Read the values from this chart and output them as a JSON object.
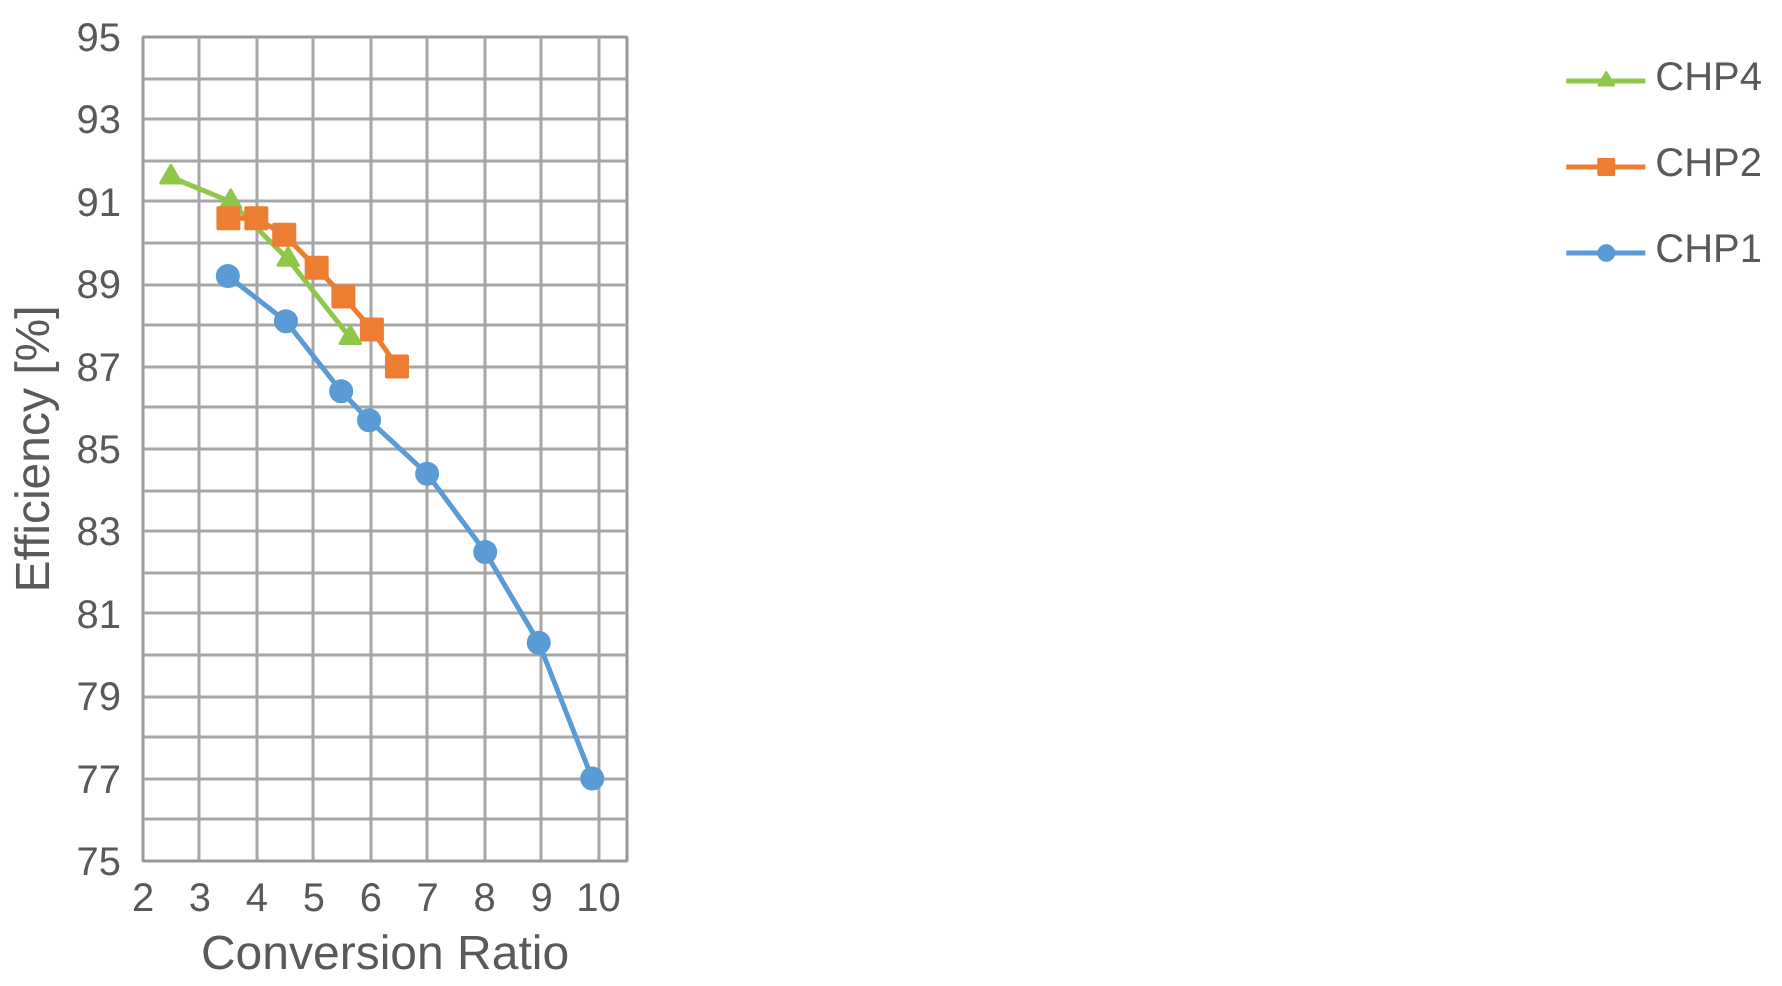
{
  "chart_data": {
    "type": "line",
    "xlabel": "Conversion Ratio",
    "ylabel": "Efficiency [%]",
    "xlim": [
      2,
      10.5
    ],
    "xticks": [
      2,
      3,
      4,
      5,
      6,
      7,
      8,
      9,
      10
    ],
    "ylim": [
      75,
      95
    ],
    "yticks": [
      75,
      {
        "value": 76,
        "label": null
      },
      77,
      {
        "value": 78,
        "label": null
      },
      79,
      {
        "value": 80,
        "label": null
      },
      81,
      {
        "value": 82,
        "label": null
      },
      83,
      {
        "value": 84,
        "label": null
      },
      85,
      {
        "value": 86,
        "label": null
      },
      87,
      {
        "value": 88,
        "label": null
      },
      89,
      {
        "value": 90,
        "label": null
      },
      91,
      {
        "value": 92,
        "label": null
      },
      93,
      {
        "value": 94,
        "label": null
      },
      95
    ],
    "grid": true,
    "legend": "right",
    "series": [
      {
        "name": "CHP4",
        "color": "#8fc74a",
        "marker": "triangle",
        "x": [
          2.49,
          3.54,
          4.55,
          5.64
        ],
        "values": [
          91.6,
          91.0,
          89.6,
          87.7
        ]
      },
      {
        "name": "CHP2",
        "color": "#ed7d31",
        "marker": "square",
        "x": [
          3.5,
          3.99,
          4.48,
          5.05,
          5.52,
          6.02,
          6.46
        ],
        "values": [
          90.6,
          90.6,
          90.2,
          89.4,
          88.7,
          87.9,
          87.0
        ]
      },
      {
        "name": "CHP1",
        "color": "#5b9bd5",
        "marker": "circle",
        "x": [
          3.49,
          4.51,
          5.48,
          5.97,
          6.99,
          8.01,
          8.95,
          9.89
        ],
        "values": [
          89.2,
          88.1,
          86.4,
          85.7,
          84.4,
          82.5,
          80.3,
          77.0
        ]
      }
    ]
  }
}
